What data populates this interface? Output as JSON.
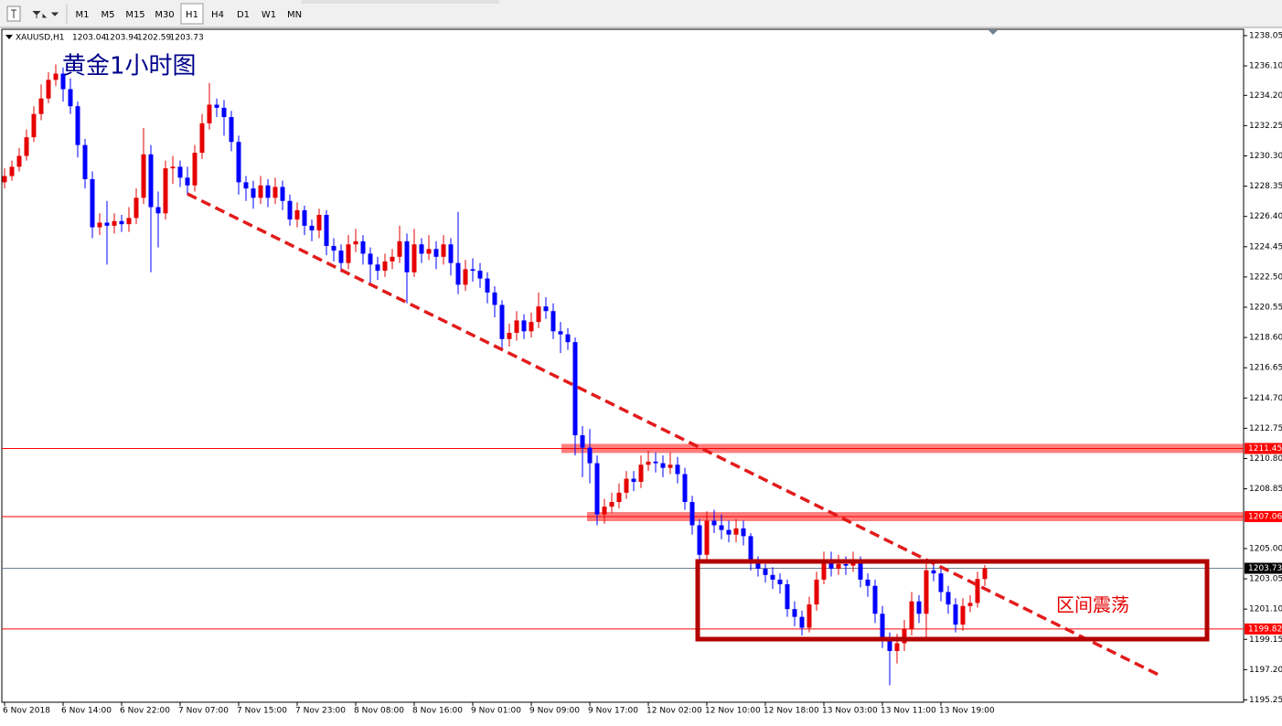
{
  "toolbar": {
    "timeframes": [
      "M1",
      "M5",
      "M15",
      "M30",
      "H1",
      "H4",
      "D1",
      "W1",
      "MN"
    ],
    "selected_timeframe": "H1"
  },
  "chart_data": {
    "type": "candlestick",
    "symbol": "XAUUSD,H1",
    "annotations": [
      "黄金1小时图",
      "区间震荡"
    ],
    "up_color": "#e60000",
    "down_color": "#0000ff",
    "categories": [
      "6 Nov 2018",
      null,
      null,
      null,
      null,
      null,
      null,
      null,
      "6 Nov 14:00",
      null,
      null,
      null,
      null,
      null,
      null,
      null,
      "6 Nov 22:00",
      null,
      null,
      null,
      null,
      null,
      null,
      null,
      "7 Nov 07:00",
      null,
      null,
      null,
      null,
      null,
      null,
      null,
      "7 Nov 15:00",
      null,
      null,
      null,
      null,
      null,
      null,
      null,
      "7 Nov 23:00",
      null,
      null,
      null,
      null,
      null,
      null,
      null,
      "8 Nov 08:00",
      null,
      null,
      null,
      null,
      null,
      null,
      null,
      "8 Nov 16:00",
      null,
      null,
      null,
      null,
      null,
      null,
      null,
      "9 Nov 01:00",
      null,
      null,
      null,
      null,
      null,
      null,
      null,
      "9 Nov 09:00",
      null,
      null,
      null,
      null,
      null,
      null,
      null,
      "9 Nov 17:00",
      null,
      null,
      null,
      null,
      null,
      null,
      null,
      "12 Nov 02:00",
      null,
      null,
      null,
      null,
      null,
      null,
      null,
      "12 Nov 10:00",
      null,
      null,
      null,
      null,
      null,
      null,
      null,
      "12 Nov 18:00",
      null,
      null,
      null,
      null,
      null,
      null,
      null,
      "13 Nov 03:00",
      null,
      null,
      null,
      null,
      null,
      null,
      null,
      "13 Nov 11:00",
      null,
      null,
      null,
      null,
      null,
      null,
      null,
      "13 Nov 19:00",
      null,
      null,
      null,
      null,
      null,
      null
    ],
    "open": [
      1228.6,
      1229.0,
      1229.6,
      1230.3,
      1231.5,
      1233.0,
      1234.0,
      1235.2,
      1235.6,
      1234.6,
      1233.5,
      1231.0,
      1228.8,
      1225.7,
      1226.0,
      1225.8,
      1226.1,
      1225.9,
      1226.3,
      1227.6,
      1230.4,
      1227.0,
      1226.6,
      1229.5,
      1229.6,
      1228.9,
      1228.4,
      1230.5,
      1232.4,
      1233.6,
      1233.4,
      1232.8,
      1231.2,
      1228.6,
      1228.2,
      1227.6,
      1228.4,
      1227.6,
      1228.3,
      1227.4,
      1226.2,
      1226.8,
      1225.8,
      1225.5,
      1226.5,
      1224.5,
      1224.2,
      1223.4,
      1224.6,
      1224.8,
      1224.0,
      1223.3,
      1222.9,
      1223.5,
      1223.8,
      1224.8,
      1222.8,
      1224.6,
      1224.0,
      1224.3,
      1223.8,
      1224.6,
      1223.4,
      1222.0,
      1223.0,
      1222.9,
      1222.4,
      1221.5,
      1220.7,
      1218.5,
      1218.9,
      1219.7,
      1219.0,
      1219.6,
      1220.6,
      1220.3,
      1219.0,
      1218.8,
      1218.3,
      1212.3,
      1211.5,
      1210.5,
      1207.2,
      1207.7,
      1208.0,
      1208.6,
      1209.5,
      1209.3,
      1210.4,
      1210.6,
      1210.5,
      1210.2,
      1210.4,
      1209.8,
      1208.0,
      1206.5,
      1204.6,
      1206.8,
      1206.5,
      1206.2,
      1205.9,
      1206.3,
      1205.8,
      1204.1,
      1203.7,
      1203.3,
      1203.0,
      1202.7,
      1201.1,
      1200.6,
      1199.9,
      1201.4,
      1203.0,
      1204.3,
      1203.7,
      1204.0,
      1203.9,
      1204.1,
      1203.0,
      1202.6,
      1200.8,
      1199.2,
      1198.4,
      1198.9,
      1199.8,
      1201.6,
      1200.8,
      1203.6,
      1203.4,
      1202.2,
      1201.4,
      1200.1,
      1201.3,
      1201.5,
      1203.04
    ],
    "high": [
      1229.5,
      1230.0,
      1230.8,
      1232.0,
      1233.5,
      1234.9,
      1235.7,
      1236.2,
      1236.0,
      1235.3,
      1233.8,
      1231.4,
      1229.3,
      1226.6,
      1227.4,
      1226.6,
      1226.5,
      1227.0,
      1228.2,
      1232.1,
      1231.0,
      1228.0,
      1230.0,
      1230.3,
      1230.0,
      1229.6,
      1231.0,
      1233.0,
      1235.0,
      1234.0,
      1233.9,
      1233.2,
      1231.6,
      1229.0,
      1228.7,
      1229.0,
      1228.8,
      1228.9,
      1228.7,
      1227.8,
      1227.3,
      1227.1,
      1226.2,
      1226.9,
      1226.8,
      1225.0,
      1224.6,
      1225.2,
      1225.6,
      1225.2,
      1224.4,
      1223.8,
      1224.0,
      1224.3,
      1225.8,
      1225.3,
      1225.6,
      1225.0,
      1225.2,
      1224.8,
      1225.2,
      1225.0,
      1226.7,
      1223.6,
      1223.7,
      1223.4,
      1222.8,
      1221.9,
      1221.0,
      1219.5,
      1220.3,
      1220.1,
      1220.2,
      1221.5,
      1221.2,
      1220.8,
      1219.6,
      1219.2,
      1218.6,
      1212.9,
      1212.7,
      1211.0,
      1208.2,
      1208.6,
      1209.2,
      1210.0,
      1210.0,
      1211.0,
      1211.3,
      1211.2,
      1211.0,
      1211.2,
      1210.9,
      1210.2,
      1208.4,
      1206.9,
      1207.4,
      1207.5,
      1207.2,
      1206.8,
      1206.9,
      1206.8,
      1206.0,
      1204.5,
      1204.0,
      1203.8,
      1203.4,
      1203.0,
      1201.6,
      1201.0,
      1201.9,
      1203.5,
      1204.8,
      1204.8,
      1204.6,
      1204.5,
      1204.8,
      1204.5,
      1203.4,
      1203.0,
      1201.3,
      1199.6,
      1199.5,
      1200.4,
      1202.2,
      1202.0,
      1204.2,
      1204.1,
      1203.8,
      1202.6,
      1201.8,
      1201.8,
      1202.0,
      1203.5,
      1203.94
    ],
    "low": [
      1228.2,
      1228.7,
      1229.3,
      1230.0,
      1231.2,
      1232.6,
      1233.7,
      1234.8,
      1233.8,
      1233.0,
      1230.2,
      1228.2,
      1225.0,
      1225.2,
      1223.3,
      1225.3,
      1225.4,
      1225.4,
      1225.9,
      1227.2,
      1222.8,
      1224.4,
      1226.2,
      1228.5,
      1228.3,
      1227.8,
      1228.0,
      1230.1,
      1232.0,
      1232.8,
      1231.6,
      1230.6,
      1227.8,
      1227.4,
      1226.9,
      1227.2,
      1227.0,
      1227.2,
      1226.8,
      1225.8,
      1225.7,
      1225.2,
      1224.8,
      1225.0,
      1223.9,
      1223.5,
      1222.8,
      1223.0,
      1224.1,
      1223.3,
      1222.0,
      1222.3,
      1222.5,
      1223.0,
      1223.4,
      1220.8,
      1222.5,
      1223.4,
      1223.6,
      1223.0,
      1223.3,
      1222.6,
      1221.4,
      1221.6,
      1222.2,
      1221.8,
      1220.8,
      1219.9,
      1217.9,
      1218.0,
      1218.4,
      1218.5,
      1218.6,
      1219.2,
      1219.8,
      1218.5,
      1217.6,
      1217.8,
      1211.0,
      1209.6,
      1209.2,
      1206.5,
      1206.6,
      1207.3,
      1207.6,
      1208.2,
      1208.7,
      1208.9,
      1210.0,
      1209.9,
      1209.6,
      1209.8,
      1209.2,
      1207.5,
      1205.9,
      1203.9,
      1204.3,
      1206.0,
      1205.6,
      1205.4,
      1205.4,
      1205.2,
      1203.6,
      1203.2,
      1202.8,
      1202.4,
      1202.1,
      1200.6,
      1200.0,
      1199.4,
      1199.6,
      1201.0,
      1202.7,
      1203.2,
      1203.3,
      1203.3,
      1203.5,
      1202.5,
      1201.9,
      1200.2,
      1198.6,
      1196.2,
      1197.6,
      1198.4,
      1199.4,
      1200.2,
      1199.3,
      1202.9,
      1201.6,
      1200.8,
      1199.6,
      1199.7,
      1200.9,
      1201.2,
      1202.59
    ],
    "close": [
      1229.0,
      1229.6,
      1230.3,
      1231.5,
      1233.0,
      1234.0,
      1235.2,
      1235.6,
      1234.6,
      1233.5,
      1231.0,
      1228.8,
      1225.7,
      1226.0,
      1225.8,
      1226.1,
      1225.9,
      1226.3,
      1227.6,
      1230.4,
      1227.0,
      1226.6,
      1229.5,
      1229.6,
      1228.9,
      1228.4,
      1230.5,
      1232.4,
      1233.6,
      1233.4,
      1232.8,
      1231.2,
      1228.6,
      1228.2,
      1227.6,
      1228.4,
      1227.6,
      1228.3,
      1227.4,
      1226.2,
      1226.8,
      1225.8,
      1225.5,
      1226.5,
      1224.5,
      1224.2,
      1223.4,
      1224.6,
      1224.8,
      1224.0,
      1223.3,
      1222.9,
      1223.5,
      1223.8,
      1224.8,
      1222.8,
      1224.6,
      1224.0,
      1224.3,
      1223.8,
      1224.6,
      1223.4,
      1222.0,
      1223.0,
      1222.9,
      1222.4,
      1221.5,
      1220.7,
      1218.5,
      1218.9,
      1219.7,
      1219.0,
      1219.6,
      1220.6,
      1220.3,
      1219.0,
      1218.8,
      1218.3,
      1212.3,
      1211.5,
      1210.5,
      1207.2,
      1207.7,
      1208.0,
      1208.6,
      1209.5,
      1209.3,
      1210.4,
      1210.6,
      1210.5,
      1210.2,
      1210.4,
      1209.8,
      1208.0,
      1206.5,
      1204.6,
      1206.8,
      1206.5,
      1206.2,
      1205.9,
      1206.3,
      1205.8,
      1204.1,
      1203.7,
      1203.3,
      1203.0,
      1202.7,
      1201.1,
      1200.6,
      1199.9,
      1201.4,
      1203.0,
      1204.3,
      1203.7,
      1204.0,
      1203.9,
      1204.1,
      1203.0,
      1202.6,
      1200.8,
      1199.2,
      1198.4,
      1198.9,
      1199.8,
      1201.6,
      1200.8,
      1203.6,
      1203.4,
      1202.2,
      1201.4,
      1200.1,
      1201.3,
      1201.5,
      1203.04,
      1203.73
    ],
    "levels": [
      {
        "value": 1211.45,
        "color": "#ff0000",
        "band": true
      },
      {
        "value": 1207.06,
        "color": "#ff0000",
        "band": true
      },
      {
        "value": 1199.82,
        "color": "#ff0000",
        "band": false
      }
    ],
    "ylim": [
      1195.1,
      1238.4
    ],
    "yticks": [
      1238.05,
      {
        "value": 1236.1,
        "label": "1236.10"
      },
      {
        "value": 1234.2,
        "label": "1234.20"
      },
      1232.25,
      {
        "value": 1230.3,
        "label": "1230.30"
      },
      1228.35,
      {
        "value": 1226.4,
        "label": "1226.40"
      },
      1224.45,
      {
        "value": 1222.5,
        "label": "1222.50"
      },
      1220.55,
      {
        "value": 1218.6,
        "label": "1218.60"
      },
      1216.65,
      {
        "value": 1214.7,
        "label": "1214.70"
      },
      1212.75,
      {
        "value": 1210.8,
        "label": "1210.80"
      },
      1208.85,
      {
        "value": 1205,
        "label": "1205.00"
      },
      1203.05,
      {
        "value": 1201.1,
        "label": "1201.10"
      },
      1199.15,
      {
        "value": 1197.2,
        "label": "1197.20"
      },
      1195.25
    ]
  }
}
